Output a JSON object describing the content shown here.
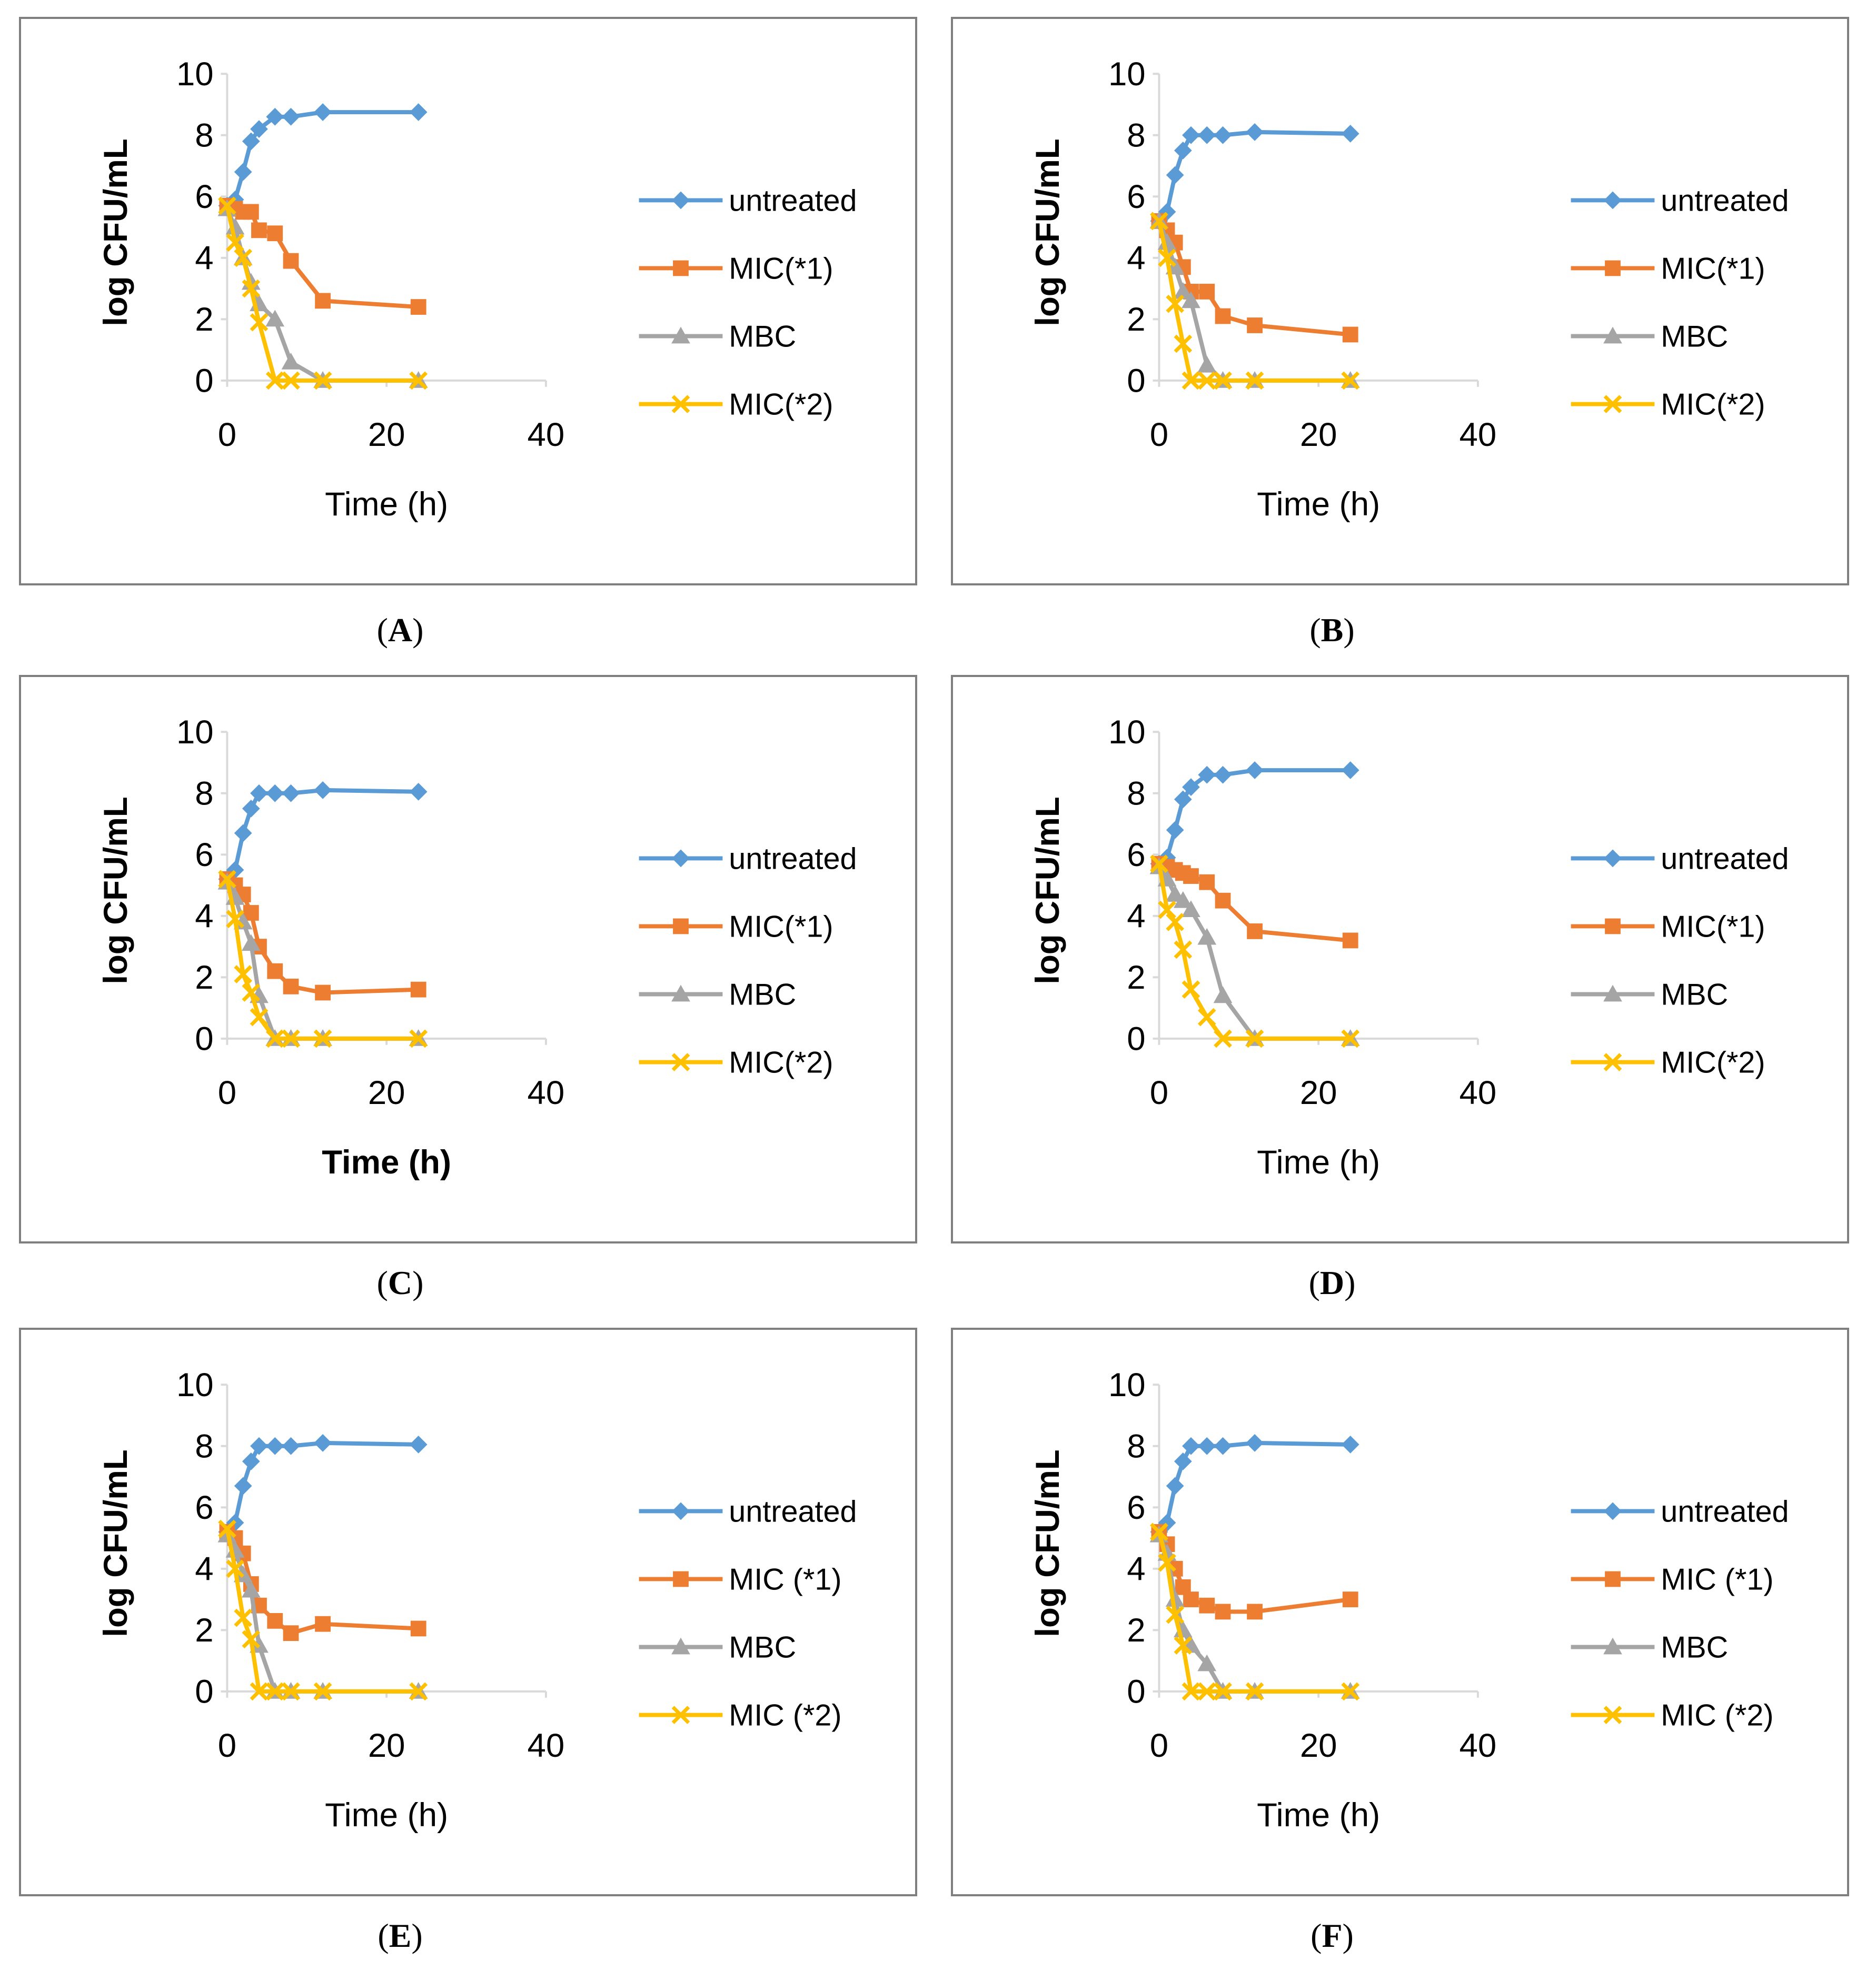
{
  "figure": {
    "colors": {
      "untreated": "#5B9BD5",
      "mic1": "#ED7D31",
      "mbc": "#A5A5A5",
      "mic2": "#FFC000",
      "frame": "#7f7f7f",
      "axis": "#d9d9d9"
    }
  },
  "chart_data": [
    {
      "panel": "A",
      "caption_open": "(",
      "caption_letter": "A",
      "caption_close": ")",
      "type": "line",
      "xlabel": "Time (h)",
      "ylabel": "log CFU/mL",
      "xlabel_bold": false,
      "xlim": [
        0,
        40
      ],
      "ylim": [
        0,
        10
      ],
      "xticks": [
        "0",
        "20",
        "40"
      ],
      "yticks": [
        "0",
        "2",
        "4",
        "6",
        "8",
        "10"
      ],
      "series": [
        {
          "name": "untreated",
          "marker": "diamond",
          "x": [
            0,
            1,
            2,
            3,
            4,
            6,
            8,
            12,
            24
          ],
          "y": [
            5.7,
            5.9,
            6.8,
            7.8,
            8.2,
            8.6,
            8.6,
            8.75,
            8.75
          ]
        },
        {
          "name": "MIC(*1)",
          "marker": "square",
          "x": [
            0,
            1,
            2,
            3,
            4,
            6,
            8,
            12,
            24
          ],
          "y": [
            5.7,
            5.6,
            5.5,
            5.5,
            4.9,
            4.8,
            3.9,
            2.6,
            2.4
          ]
        },
        {
          "name": "MBC",
          "marker": "triangle",
          "x": [
            0,
            1,
            2,
            3,
            4,
            6,
            8,
            12,
            24
          ],
          "y": [
            5.6,
            5.0,
            4.0,
            3.2,
            2.5,
            2.0,
            0.6,
            0,
            0
          ]
        },
        {
          "name": "MIC(*2)",
          "marker": "cross",
          "x": [
            0,
            1,
            2,
            3,
            4,
            6,
            8,
            12,
            24
          ],
          "y": [
            5.7,
            4.5,
            4.0,
            3.0,
            1.9,
            0,
            0,
            0,
            0
          ]
        }
      ]
    },
    {
      "panel": "B",
      "caption_open": "(",
      "caption_letter": "B",
      "caption_close": ")",
      "type": "line",
      "xlabel": "Time (h)",
      "ylabel": "log CFU/mL",
      "xlabel_bold": false,
      "xlim": [
        0,
        40
      ],
      "ylim": [
        0,
        10
      ],
      "xticks": [
        "0",
        "20",
        "40"
      ],
      "yticks": [
        "0",
        "2",
        "4",
        "6",
        "8",
        "10"
      ],
      "series": [
        {
          "name": "untreated",
          "marker": "diamond",
          "x": [
            0,
            1,
            2,
            3,
            4,
            6,
            8,
            12,
            24
          ],
          "y": [
            5.2,
            5.5,
            6.7,
            7.5,
            8.0,
            8.0,
            8.0,
            8.1,
            8.05
          ]
        },
        {
          "name": "MIC(*1)",
          "marker": "square",
          "x": [
            0,
            1,
            2,
            3,
            4,
            6,
            8,
            12,
            24
          ],
          "y": [
            5.2,
            4.9,
            4.5,
            3.7,
            2.9,
            2.9,
            2.1,
            1.8,
            1.5
          ]
        },
        {
          "name": "MBC",
          "marker": "triangle",
          "x": [
            0,
            1,
            2,
            3,
            4,
            6,
            8,
            12,
            24
          ],
          "y": [
            5.2,
            4.5,
            3.7,
            2.9,
            2.6,
            0.5,
            0,
            0,
            0
          ]
        },
        {
          "name": "MIC(*2)",
          "marker": "cross",
          "x": [
            0,
            1,
            2,
            3,
            4,
            6,
            8,
            12,
            24
          ],
          "y": [
            5.2,
            4.0,
            2.5,
            1.2,
            0,
            0,
            0,
            0,
            0
          ]
        }
      ]
    },
    {
      "panel": "C",
      "caption_open": "(",
      "caption_letter": "C",
      "caption_close": ")",
      "type": "line",
      "xlabel": "Time (h)",
      "ylabel": "log CFU/mL",
      "xlabel_bold": true,
      "xlim": [
        0,
        40
      ],
      "ylim": [
        0,
        10
      ],
      "xticks": [
        "0",
        "20",
        "40"
      ],
      "yticks": [
        "0",
        "2",
        "4",
        "6",
        "8",
        "10"
      ],
      "series": [
        {
          "name": "untreated",
          "marker": "diamond",
          "x": [
            0,
            1,
            2,
            3,
            4,
            6,
            8,
            12,
            24
          ],
          "y": [
            5.2,
            5.5,
            6.7,
            7.5,
            8.0,
            8.0,
            8.0,
            8.1,
            8.05
          ]
        },
        {
          "name": "MIC(*1)",
          "marker": "square",
          "x": [
            0,
            1,
            2,
            3,
            4,
            6,
            8,
            12,
            24
          ],
          "y": [
            5.2,
            5.0,
            4.7,
            4.1,
            3.0,
            2.2,
            1.7,
            1.5,
            1.6
          ]
        },
        {
          "name": "MBC",
          "marker": "triangle",
          "x": [
            0,
            1,
            2,
            3,
            4,
            6,
            8,
            12,
            24
          ],
          "y": [
            5.1,
            4.6,
            3.8,
            3.1,
            1.4,
            0,
            0,
            0,
            0
          ]
        },
        {
          "name": "MIC(*2)",
          "marker": "cross",
          "x": [
            0,
            1,
            2,
            3,
            4,
            6,
            8,
            12,
            24
          ],
          "y": [
            5.2,
            3.9,
            2.1,
            1.5,
            0.7,
            0,
            0,
            0,
            0
          ]
        }
      ]
    },
    {
      "panel": "D",
      "caption_open": "(",
      "caption_letter": "D",
      "caption_close": ")",
      "type": "line",
      "xlabel": "Time (h)",
      "ylabel": "log CFU/mL",
      "xlabel_bold": false,
      "xlim": [
        0,
        40
      ],
      "ylim": [
        0,
        10
      ],
      "xticks": [
        "0",
        "20",
        "40"
      ],
      "yticks": [
        "0",
        "2",
        "4",
        "6",
        "8",
        "10"
      ],
      "series": [
        {
          "name": "untreated",
          "marker": "diamond",
          "x": [
            0,
            1,
            2,
            3,
            4,
            6,
            8,
            12,
            24
          ],
          "y": [
            5.7,
            5.9,
            6.8,
            7.8,
            8.2,
            8.6,
            8.6,
            8.75,
            8.75
          ]
        },
        {
          "name": "MIC(*1)",
          "marker": "square",
          "x": [
            0,
            1,
            2,
            3,
            4,
            6,
            8,
            12,
            24
          ],
          "y": [
            5.7,
            5.6,
            5.5,
            5.4,
            5.3,
            5.1,
            4.5,
            3.5,
            3.2
          ]
        },
        {
          "name": "MBC",
          "marker": "triangle",
          "x": [
            0,
            1,
            2,
            3,
            4,
            6,
            8,
            12,
            24
          ],
          "y": [
            5.6,
            5.2,
            4.7,
            4.5,
            4.2,
            3.3,
            1.4,
            0,
            0
          ]
        },
        {
          "name": "MIC(*2)",
          "marker": "cross",
          "x": [
            0,
            1,
            2,
            3,
            4,
            6,
            8,
            12,
            24
          ],
          "y": [
            5.7,
            4.2,
            3.8,
            2.9,
            1.6,
            0.7,
            0,
            0,
            0
          ]
        }
      ]
    },
    {
      "panel": "E",
      "caption_open": "(",
      "caption_letter": "E",
      "caption_close": ")",
      "type": "line",
      "xlabel": "Time (h)",
      "ylabel": "log CFU/mL",
      "xlabel_bold": false,
      "xlim": [
        0,
        40
      ],
      "ylim": [
        0,
        10
      ],
      "xticks": [
        "0",
        "20",
        "40"
      ],
      "yticks": [
        "0",
        "2",
        "4",
        "6",
        "8",
        "10"
      ],
      "series": [
        {
          "name": "untreated",
          "marker": "diamond",
          "x": [
            0,
            1,
            2,
            3,
            4,
            6,
            8,
            12,
            24
          ],
          "y": [
            5.2,
            5.5,
            6.7,
            7.5,
            8.0,
            8.0,
            8.0,
            8.1,
            8.05
          ]
        },
        {
          "name": "MIC (*1)",
          "marker": "square",
          "x": [
            0,
            1,
            2,
            3,
            4,
            6,
            8,
            12,
            24
          ],
          "y": [
            5.2,
            5.0,
            4.5,
            3.5,
            2.8,
            2.3,
            1.9,
            2.2,
            2.05
          ]
        },
        {
          "name": "MBC",
          "marker": "triangle",
          "x": [
            0,
            1,
            2,
            3,
            4,
            6,
            8,
            12,
            24
          ],
          "y": [
            5.1,
            4.6,
            3.8,
            3.3,
            1.5,
            0,
            0,
            0,
            0
          ]
        },
        {
          "name": "MIC (*2)",
          "marker": "cross",
          "x": [
            0,
            1,
            2,
            3,
            4,
            6,
            8,
            12,
            24
          ],
          "y": [
            5.3,
            4.0,
            2.4,
            1.7,
            0,
            0,
            0,
            0,
            0
          ]
        }
      ]
    },
    {
      "panel": "F",
      "caption_open": "(",
      "caption_letter": "F",
      "caption_close": ")",
      "type": "line",
      "xlabel": "Time (h)",
      "ylabel": "log CFU/mL",
      "xlabel_bold": false,
      "xlim": [
        0,
        40
      ],
      "ylim": [
        0,
        10
      ],
      "xticks": [
        "0",
        "20",
        "40"
      ],
      "yticks": [
        "0",
        "2",
        "4",
        "6",
        "8",
        "10"
      ],
      "series": [
        {
          "name": "untreated",
          "marker": "diamond",
          "x": [
            0,
            1,
            2,
            3,
            4,
            6,
            8,
            12,
            24
          ],
          "y": [
            5.2,
            5.5,
            6.7,
            7.5,
            8.0,
            8.0,
            8.0,
            8.1,
            8.05
          ]
        },
        {
          "name": "MIC (*1)",
          "marker": "square",
          "x": [
            0,
            1,
            2,
            3,
            4,
            6,
            8,
            12,
            24
          ],
          "y": [
            5.2,
            4.8,
            4.0,
            3.4,
            3.0,
            2.8,
            2.6,
            2.6,
            3.0
          ]
        },
        {
          "name": "MBC",
          "marker": "triangle",
          "x": [
            0,
            1,
            2,
            3,
            4,
            6,
            8,
            12,
            24
          ],
          "y": [
            5.1,
            4.5,
            3.0,
            2.0,
            1.5,
            0.9,
            0,
            0,
            0
          ]
        },
        {
          "name": "MIC (*2)",
          "marker": "cross",
          "x": [
            0,
            1,
            2,
            3,
            4,
            6,
            8,
            12,
            24
          ],
          "y": [
            5.2,
            4.2,
            2.5,
            1.5,
            0,
            0,
            0,
            0,
            0
          ]
        }
      ]
    }
  ]
}
